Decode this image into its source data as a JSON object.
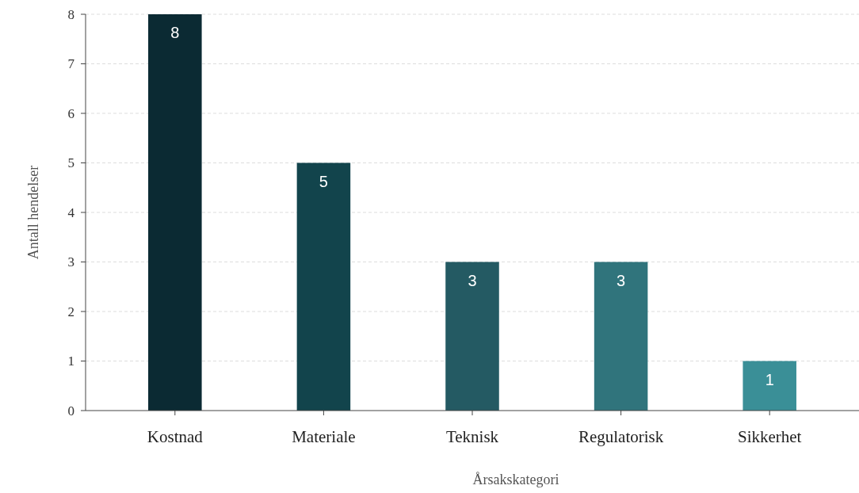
{
  "chart_data": {
    "type": "bar",
    "xlabel": "Årsakskategori",
    "ylabel": "Antall hendelser",
    "categories": [
      "Kostnad",
      "Materiale",
      "Teknisk",
      "Regulatorisk",
      "Sikkerhet"
    ],
    "values": [
      8,
      5,
      3,
      3,
      1
    ],
    "colors": [
      "#0b2a33",
      "#12444c",
      "#245a63",
      "#30747c",
      "#3a8f97"
    ],
    "ylim": [
      0,
      8
    ],
    "yticks": [
      0,
      1,
      2,
      3,
      4,
      5,
      6,
      7,
      8
    ],
    "grid": "y",
    "data_labels": true
  }
}
